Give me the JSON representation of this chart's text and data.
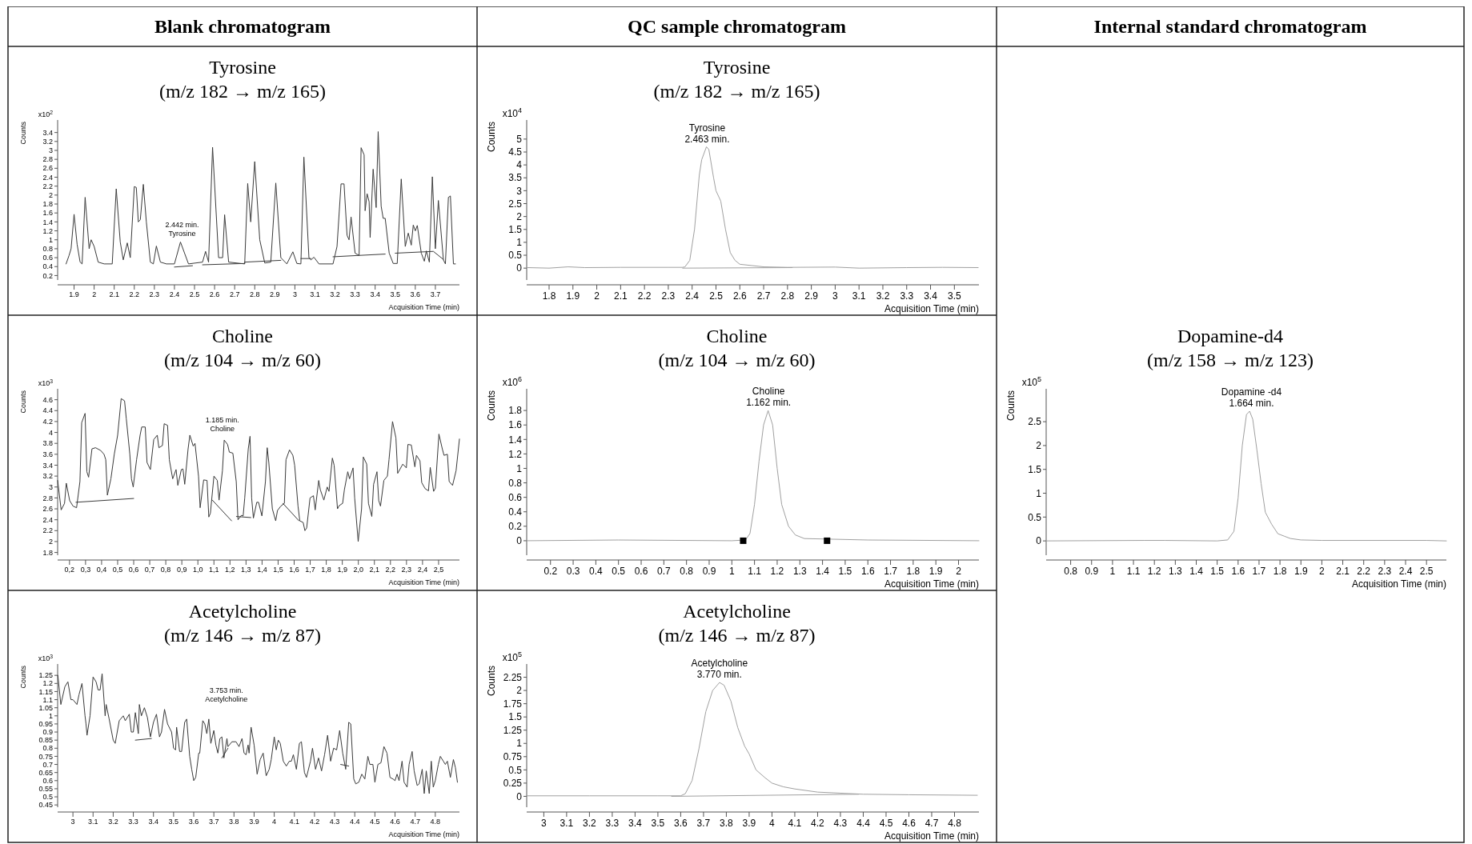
{
  "chart_data": [
    {
      "type": "line",
      "title": "Tyrosine\n(m/z 182 → m/z 165)",
      "xlabel": "Acquisition Time (min)",
      "ylabel": "Counts",
      "xlim": [
        1.818,
        3.82
      ],
      "ylim": [
        0.1,
        3.68
      ],
      "xticks": [
        1.9,
        2,
        2.1,
        2.2,
        2.3,
        2.4,
        2.5,
        2.6,
        2.7,
        2.8,
        2.9,
        3,
        3.1,
        3.2,
        3.3,
        3.4,
        3.5,
        3.6,
        3.7
      ],
      "yticks": [
        0.2,
        0.4,
        0.6,
        0.8,
        1,
        1.2,
        1.4,
        1.6,
        1.8,
        2,
        2.2,
        2.4,
        2.6,
        2.8,
        3,
        3.2,
        3.4
      ],
      "annotations": [
        "Blank chromatogram",
        "x10$^{2}$",
        "2.442 min.\nTyrosine"
      ],
      "series": [
        {
          "color": "#3a3a3a",
          "x": [
            1.86,
            1.875,
            1.885,
            1.9,
            1.915,
            1.93,
            1.94,
            1.955,
            1.975,
            1.985,
            2.0,
            2.02,
            2.05,
            2.09,
            2.11,
            2.13,
            2.145,
            2.165,
            2.18,
            2.2,
            2.21,
            2.22,
            2.23,
            2.245,
            2.26,
            2.28,
            2.295,
            2.31,
            2.33,
            2.36,
            2.4,
            2.43,
            2.47,
            2.54,
            2.555,
            2.57,
            2.59,
            2.62,
            2.64,
            2.65,
            2.67,
            2.75,
            2.765,
            2.78,
            2.8,
            2.825,
            2.85,
            2.88,
            2.905,
            2.93,
            2.96,
            2.99,
            3.01,
            3.03,
            3.045,
            3.07,
            3.08,
            3.095,
            3.12,
            3.19,
            3.21,
            3.23,
            3.245,
            3.26,
            3.27,
            3.28,
            3.3,
            3.32,
            3.33,
            3.345,
            3.35,
            3.36,
            3.37,
            3.375,
            3.39,
            3.405,
            3.415,
            3.43,
            3.44,
            3.45,
            3.47,
            3.49,
            3.51,
            3.53,
            3.55,
            3.565,
            3.58,
            3.59,
            3.6,
            3.61,
            3.63,
            3.645,
            3.655,
            3.67,
            3.685,
            3.7,
            3.715,
            3.74,
            3.75,
            3.765,
            3.775,
            3.79,
            3.8
          ],
          "values": [
            0.46,
            0.65,
            0.8,
            1.57,
            0.9,
            0.5,
            0.46,
            1.95,
            0.8,
            1.0,
            0.85,
            0.5,
            0.46,
            0.46,
            2.14,
            0.95,
            0.55,
            0.93,
            0.6,
            2.19,
            2.17,
            1.4,
            1.45,
            2.24,
            1.4,
            0.5,
            0.46,
            0.86,
            0.5,
            0.46,
            0.46,
            0.95,
            0.46,
            0.5,
            0.74,
            0.5,
            3.07,
            0.6,
            0.6,
            1.56,
            0.5,
            0.46,
            2.26,
            1.4,
            2.75,
            1.0,
            0.48,
            0.5,
            2.27,
            0.6,
            0.46,
            0.73,
            0.47,
            0.46,
            2.85,
            0.6,
            0.55,
            0.61,
            0.46,
            0.46,
            0.85,
            2.25,
            2.25,
            1.1,
            1.0,
            1.51,
            0.7,
            0.65,
            3.06,
            2.9,
            1.65,
            2.03,
            1.85,
            1.05,
            2.58,
            1.72,
            3.42,
            1.75,
            1.48,
            1.48,
            0.7,
            0.47,
            0.47,
            2.36,
            0.85,
            1.15,
            0.88,
            1.33,
            1.2,
            1.32,
            0.7,
            0.52,
            0.75,
            0.5,
            2.41,
            0.8,
            1.88,
            0.55,
            0.46,
            1.95,
            1.98,
            0.46,
            0.46
          ]
        },
        {
          "color": "#3a3a3a",
          "x": [
            2.4,
            2.49
          ],
          "values": [
            0.39,
            0.42
          ]
        },
        {
          "color": "#3a3a3a",
          "x": [
            2.54,
            2.75,
            2.75,
            2.93
          ],
          "values": [
            0.44,
            0.47,
            0.5,
            0.54
          ]
        },
        {
          "color": "#3a3a3a",
          "x": [
            3.03,
            3.08
          ],
          "values": [
            0.58,
            0.58
          ]
        },
        {
          "color": "#3a3a3a",
          "x": [
            3.19,
            3.45
          ],
          "values": [
            0.62,
            0.68
          ]
        },
        {
          "color": "#3a3a3a",
          "x": [
            3.5,
            3.69,
            3.74
          ],
          "values": [
            0.7,
            0.74,
            0.56
          ]
        }
      ]
    },
    {
      "type": "line",
      "title": "Tyrosine\n(m/z 182 → m/z 165)",
      "xlabel": "Acquisition Time (min)",
      "ylabel": "Counts",
      "xlim": [
        1.706,
        3.603
      ],
      "ylim": [
        -0.46,
        5.74
      ],
      "xticks": [
        1.8,
        1.9,
        2,
        2.1,
        2.2,
        2.3,
        2.4,
        2.5,
        2.6,
        2.7,
        2.8,
        2.9,
        3,
        3.1,
        3.2,
        3.3,
        3.4,
        3.5
      ],
      "yticks": [
        0,
        0.5,
        1,
        1.5,
        2,
        2.5,
        3,
        3.5,
        4,
        4.5,
        5
      ],
      "annotations": [
        "QC sample chromatogram",
        "x10$^{4}$",
        {
          "text": "Tyrosine\n2.463 min.",
          "x": 2.463,
          "y": 4.75
        }
      ],
      "series": [
        {
          "color": "#a0a0a0",
          "x": [
            1.71,
            1.8,
            1.88,
            1.95,
            2.1,
            2.3,
            2.36,
            2.37,
            2.39,
            2.41,
            2.43,
            2.44,
            2.46,
            2.47,
            2.49,
            2.5,
            2.52,
            2.54,
            2.56,
            2.58,
            2.6,
            2.65,
            2.7,
            2.8,
            3.0,
            3.1,
            3.3,
            3.45,
            3.6
          ],
          "values": [
            0.02,
            0,
            0.05,
            0.02,
            0.03,
            0.03,
            0.03,
            0.05,
            0.3,
            1.5,
            3.6,
            4.2,
            4.7,
            4.6,
            3.5,
            3.0,
            2.6,
            1.5,
            0.6,
            0.3,
            0.15,
            0.1,
            0.05,
            0.03,
            0.04,
            0,
            0.02,
            0.03,
            0.02
          ]
        },
        {
          "color": "#a0a0a0",
          "x": [
            2.36,
            2.82
          ],
          "values": [
            0,
            0.02
          ]
        }
      ]
    },
    {
      "type": "line",
      "title": "Choline\n(m/z 104 → m/z 60)",
      "xlabel": "Acquisition Time (min)",
      "ylabel": "Counts",
      "xlim": [
        0.126,
        2.63
      ],
      "ylim": [
        1.75,
        4.8
      ],
      "xticks": [
        {
          "value": 0.2,
          "label": "0,2"
        },
        {
          "value": 0.3,
          "label": "0,3"
        },
        {
          "value": 0.4,
          "label": "0,4"
        },
        {
          "value": 0.5,
          "label": "0,5"
        },
        {
          "value": 0.6,
          "label": "0,6"
        },
        {
          "value": 0.7,
          "label": "0,7"
        },
        {
          "value": 0.8,
          "label": "0,8"
        },
        {
          "value": 0.9,
          "label": "0,9"
        },
        {
          "value": 1,
          "label": "1,0"
        },
        {
          "value": 1.1,
          "label": "1,1"
        },
        {
          "value": 1.2,
          "label": "1,2"
        },
        {
          "value": 1.3,
          "label": "1,3"
        },
        {
          "value": 1.4,
          "label": "1,4"
        },
        {
          "value": 1.5,
          "label": "1,5"
        },
        {
          "value": 1.6,
          "label": "1,6"
        },
        {
          "value": 1.7,
          "label": "1,7"
        },
        {
          "value": 1.8,
          "label": "1,8"
        },
        {
          "value": 1.9,
          "label": "1,9"
        },
        {
          "value": 2,
          "label": "2,0"
        },
        {
          "value": 2.1,
          "label": "2,1"
        },
        {
          "value": 2.2,
          "label": "2,2"
        },
        {
          "value": 2.3,
          "label": "2,3"
        },
        {
          "value": 2.4,
          "label": "2,4"
        },
        {
          "value": 2.5,
          "label": "2,5"
        }
      ],
      "yticks": [
        1.8,
        2,
        2.2,
        2.4,
        2.6,
        2.8,
        3,
        3.2,
        3.4,
        3.6,
        3.8,
        4,
        4.2,
        4.4,
        4.6
      ],
      "annotations": [
        "x10$^{3}$",
        "1.185 min.\nCholine"
      ],
      "series": [
        {
          "color": "#3a3a3a",
          "x": [
            0.126,
            0.148,
            0.169,
            0.18,
            0.201,
            0.222,
            0.244,
            0.265,
            0.276,
            0.297,
            0.308,
            0.319,
            0.34,
            0.362,
            0.394,
            0.415,
            0.426,
            0.436,
            0.458,
            0.479,
            0.5,
            0.522,
            0.543,
            0.554,
            0.576,
            0.586,
            0.597,
            0.618,
            0.64,
            0.65,
            0.672,
            0.683,
            0.704,
            0.725,
            0.747,
            0.757,
            0.779,
            0.79,
            0.811,
            0.822,
            0.843,
            0.864,
            0.875,
            0.897,
            0.907,
            0.918,
            0.939,
            0.95,
            0.971,
            0.982,
            1.004,
            1.014,
            1.036,
            1.057,
            1.068,
            1.078,
            1.1,
            1.121,
            1.132,
            1.153,
            1.164,
            1.185,
            1.196,
            1.218,
            1.239,
            1.25,
            1.271,
            1.282,
            1.292,
            1.314,
            1.325,
            1.335,
            1.346,
            1.367,
            1.378,
            1.399,
            1.421,
            1.432,
            1.442,
            1.464,
            1.485,
            1.496,
            1.517,
            1.539,
            1.549,
            1.571,
            1.592,
            1.603,
            1.624,
            1.635,
            1.656,
            1.667,
            1.678,
            1.699,
            1.72,
            1.731,
            1.753,
            1.763,
            1.785,
            1.806,
            1.817,
            1.838,
            1.849,
            1.87,
            1.881,
            1.902,
            1.913,
            1.934,
            1.945,
            1.967,
            1.977,
            1.999,
            2.02,
            2.031,
            2.052,
            2.063,
            2.084,
            2.095,
            2.116,
            2.127,
            2.138,
            2.159,
            2.181,
            2.191,
            2.213,
            2.234,
            2.245,
            2.277,
            2.299,
            2.309,
            2.33,
            2.352,
            2.362,
            2.384,
            2.395,
            2.416,
            2.437,
            2.448,
            2.469,
            2.48,
            2.502,
            2.523,
            2.534,
            2.555,
            2.566,
            2.587,
            2.609,
            2.63
          ],
          "values": [
            3.12,
            2.58,
            2.7,
            3.07,
            2.75,
            2.65,
            2.62,
            3.1,
            4.18,
            4.35,
            3.28,
            3.18,
            3.7,
            3.72,
            3.67,
            3.6,
            3.5,
            2.85,
            3.15,
            3.6,
            3.95,
            4.62,
            4.58,
            4.25,
            3.6,
            3.15,
            3.0,
            3.5,
            3.95,
            4.1,
            4.1,
            3.45,
            3.32,
            3.87,
            3.95,
            3.72,
            3.76,
            4.16,
            4.13,
            3.5,
            3.15,
            3.32,
            3.03,
            3.32,
            3.33,
            3.05,
            3.7,
            3.95,
            3.75,
            3.8,
            3.2,
            2.62,
            3.13,
            3.12,
            2.45,
            2.52,
            3.2,
            3.12,
            2.76,
            3.3,
            3.86,
            3.78,
            3.64,
            3.62,
            3.1,
            2.4,
            2.48,
            2.47,
            2.8,
            3.7,
            3.93,
            2.8,
            2.43,
            2.72,
            2.72,
            2.47,
            3.1,
            3.72,
            3.45,
            2.6,
            2.38,
            2.57,
            2.65,
            2.7,
            3.5,
            3.68,
            3.58,
            3.4,
            2.65,
            2.38,
            2.35,
            2.2,
            2.25,
            2.8,
            2.84,
            2.58,
            3.12,
            2.95,
            2.76,
            3.0,
            2.92,
            3.53,
            3.4,
            2.6,
            2.66,
            2.7,
            2.95,
            3.28,
            3.15,
            3.35,
            2.8,
            2.0,
            2.6,
            3.55,
            3.42,
            2.7,
            2.46,
            3.05,
            3.28,
            2.75,
            2.65,
            3.12,
            3.2,
            3.5,
            4.2,
            3.9,
            3.25,
            3.42,
            3.35,
            3.78,
            3.77,
            3.37,
            3.58,
            3.48,
            3.08,
            2.97,
            2.93,
            3.36,
            2.92,
            2.98,
            3.97,
            3.7,
            3.58,
            3.6,
            3.1,
            3.03,
            3.3,
            3.88
          ]
        },
        {
          "color": "#3a3a3a",
          "x": [
            0.24,
            0.6
          ],
          "values": [
            2.72,
            2.79
          ]
        },
        {
          "color": "#3a3a3a",
          "x": [
            1.09,
            1.21
          ],
          "values": [
            2.76,
            2.38
          ]
        },
        {
          "color": "#3a3a3a",
          "x": [
            1.24,
            1.33
          ],
          "values": [
            2.46,
            2.44
          ]
        },
        {
          "color": "#3a3a3a",
          "x": [
            1.53,
            1.63
          ],
          "values": [
            2.7,
            2.38
          ]
        }
      ]
    },
    {
      "type": "line",
      "title": "Choline\n(m/z 104 → m/z 60)",
      "xlabel": "Acquisition Time (min)",
      "ylabel": "Counts",
      "xlim": [
        0.095,
        2.09
      ],
      "ylim": [
        -0.2,
        2.1
      ],
      "xticks": [
        0.2,
        0.3,
        0.4,
        0.5,
        0.6,
        0.7,
        0.8,
        0.9,
        1,
        1.1,
        1.2,
        1.3,
        1.4,
        1.5,
        1.6,
        1.7,
        1.8,
        1.9,
        2
      ],
      "yticks": [
        0,
        0.2,
        0.4,
        0.6,
        0.8,
        1,
        1.2,
        1.4,
        1.6,
        1.8
      ],
      "annotations": [
        "x10$^{6}$",
        {
          "text": "Choline\n1.162 min.",
          "x": 1.162,
          "y": 1.82
        }
      ],
      "series": [
        {
          "color": "#a0a0a0",
          "x": [
            0.095,
            0.5,
            1.0,
            1.06,
            1.08,
            1.1,
            1.12,
            1.14,
            1.16,
            1.18,
            1.2,
            1.22,
            1.25,
            1.28,
            1.32,
            1.6,
            2.09
          ],
          "values": [
            0,
            0.01,
            0,
            0.01,
            0.1,
            0.5,
            1.1,
            1.6,
            1.8,
            1.6,
            1.0,
            0.5,
            0.2,
            0.08,
            0.03,
            0.01,
            0
          ]
        },
        {
          "type": "scatter",
          "marker": "square",
          "color": "#000000",
          "x": [
            1.05,
            1.42
          ],
          "values": [
            0,
            0
          ]
        }
      ]
    },
    {
      "type": "line",
      "title": "Dopamine-d4\n(m/z 158 → m/z 123)",
      "xlabel": "Acquisition Time (min)",
      "ylabel": "Counts",
      "xlim": [
        0.683,
        2.595
      ],
      "ylim": [
        -0.3,
        3.19
      ],
      "xticks": [
        0.8,
        0.9,
        1,
        1.1,
        1.2,
        1.3,
        1.4,
        1.5,
        1.6,
        1.7,
        1.8,
        1.9,
        2,
        2.1,
        2.2,
        2.3,
        2.4,
        2.5
      ],
      "yticks": [
        0,
        0.5,
        1,
        1.5,
        2,
        2.5
      ],
      "annotations": [
        "Internal standard chromatogram",
        "x10$^{5}$",
        {
          "text": "Dopamine -d4\n1.664 min.",
          "x": 1.664,
          "y": 2.75
        }
      ],
      "series": [
        {
          "color": "#a0a0a0",
          "x": [
            0.683,
            1.15,
            1.25,
            1.5,
            1.55,
            1.58,
            1.6,
            1.62,
            1.64,
            1.655,
            1.67,
            1.69,
            1.71,
            1.73,
            1.76,
            1.79,
            1.82,
            1.85,
            1.9,
            2.0,
            2.5,
            2.595
          ],
          "values": [
            0,
            0.01,
            0.01,
            0,
            0.02,
            0.2,
            0.9,
            2.0,
            2.65,
            2.72,
            2.55,
            1.9,
            1.2,
            0.6,
            0.35,
            0.15,
            0.1,
            0.05,
            0.02,
            0.01,
            0.01,
            0
          ]
        }
      ]
    },
    {
      "type": "line",
      "title": "Acetylcholine\n(m/z 146 → m/z 87)",
      "xlabel": "Acquisition Time (min)",
      "ylabel": "Counts",
      "xlim": [
        2.924,
        4.92
      ],
      "ylim": [
        0.436,
        1.32
      ],
      "xticks": [
        3,
        3.1,
        3.2,
        3.3,
        3.4,
        3.5,
        3.6,
        3.7,
        3.8,
        3.9,
        4,
        4.1,
        4.2,
        4.3,
        4.4,
        4.5,
        4.6,
        4.7,
        4.8
      ],
      "yticks": [
        0.45,
        0.5,
        0.55,
        0.6,
        0.65,
        0.7,
        0.75,
        0.8,
        0.85,
        0.9,
        0.95,
        1,
        1.05,
        1.1,
        1.15,
        1.2,
        1.25
      ],
      "annotations": [
        "x10$^{3}$",
        "3.753 min.\nAcetylcholine"
      ],
      "series": [
        {
          "color": "#3a3a3a",
          "x": [
            2.925,
            2.94,
            2.96,
            2.975,
            2.99,
            3.0,
            3.02,
            3.03,
            3.045,
            3.06,
            3.065,
            3.07,
            3.085,
            3.1,
            3.115,
            3.125,
            3.135,
            3.145,
            3.16,
            3.165,
            3.18,
            3.2,
            3.21,
            3.23,
            3.25,
            3.26,
            3.28,
            3.29,
            3.3,
            3.31,
            3.325,
            3.33,
            3.34,
            3.355,
            3.37,
            3.385,
            3.4,
            3.415,
            3.43,
            3.44,
            3.455,
            3.47,
            3.49,
            3.5,
            3.51,
            3.515,
            3.53,
            3.54,
            3.555,
            3.565,
            3.58,
            3.59,
            3.6,
            3.61,
            3.625,
            3.63,
            3.645,
            3.655,
            3.665,
            3.675,
            3.685,
            3.7,
            3.71,
            3.72,
            3.73,
            3.74,
            3.75,
            3.765,
            3.77,
            3.79,
            3.81,
            3.825,
            3.84,
            3.85,
            3.86,
            3.87,
            3.875,
            3.885,
            3.9,
            3.915,
            3.93,
            3.945,
            3.96,
            3.975,
            3.985,
            4.0,
            4.01,
            4.02,
            4.03,
            4.045,
            4.06,
            4.075,
            4.085,
            4.095,
            4.11,
            4.125,
            4.135,
            4.15,
            4.16,
            4.18,
            4.19,
            4.205,
            4.22,
            4.235,
            4.25,
            4.265,
            4.28,
            4.295,
            4.31,
            4.325,
            4.34,
            4.355,
            4.37,
            4.38,
            4.395,
            4.405,
            4.42,
            4.435,
            4.45,
            4.465,
            4.475,
            4.49,
            4.5,
            4.515,
            4.53,
            4.545,
            4.56,
            4.575,
            4.59,
            4.6,
            4.61,
            4.62,
            4.635,
            4.645,
            4.66,
            4.67,
            4.685,
            4.695,
            4.71,
            4.72,
            4.735,
            4.745,
            4.755,
            4.77,
            4.78,
            4.79,
            4.8,
            4.815,
            4.825,
            4.84,
            4.85,
            4.86,
            4.875,
            4.89,
            4.9,
            4.91
          ],
          "values": [
            1.25,
            1.07,
            1.18,
            1.21,
            1.1,
            1.1,
            1.07,
            1.13,
            1.2,
            1.0,
            0.95,
            0.88,
            1.0,
            1.24,
            1.21,
            1.16,
            1.16,
            1.26,
            1.0,
            1.07,
            0.98,
            0.85,
            0.83,
            0.97,
            1.0,
            0.97,
            1.01,
            0.9,
            0.9,
            1.02,
            0.89,
            1.07,
            1.0,
            1.05,
            0.99,
            0.87,
            0.96,
            1.01,
            0.87,
            0.9,
            1.04,
            0.95,
            0.9,
            0.8,
            0.79,
            0.93,
            0.78,
            0.78,
            0.96,
            0.98,
            0.75,
            0.67,
            0.6,
            0.62,
            0.77,
            0.77,
            0.97,
            0.95,
            0.89,
            0.98,
            0.83,
            0.91,
            0.82,
            0.77,
            0.86,
            0.87,
            0.74,
            0.86,
            0.81,
            0.84,
            0.84,
            0.81,
            0.86,
            0.77,
            0.76,
            0.82,
            0.77,
            0.93,
            0.82,
            0.64,
            0.73,
            0.77,
            0.63,
            0.67,
            0.73,
            0.87,
            0.79,
            0.85,
            0.83,
            0.72,
            0.69,
            0.72,
            0.72,
            0.76,
            0.67,
            0.83,
            0.84,
            0.65,
            0.62,
            0.72,
            0.8,
            0.67,
            0.74,
            0.66,
            0.76,
            0.88,
            0.72,
            0.8,
            0.79,
            0.91,
            0.77,
            0.67,
            0.96,
            0.95,
            0.61,
            0.58,
            0.59,
            0.64,
            0.61,
            0.75,
            0.7,
            0.7,
            0.59,
            0.7,
            0.71,
            0.81,
            0.77,
            0.62,
            0.61,
            0.6,
            0.64,
            0.6,
            0.72,
            0.59,
            0.56,
            0.7,
            0.78,
            0.66,
            0.57,
            0.58,
            0.67,
            0.52,
            0.66,
            0.52,
            0.72,
            0.56,
            0.6,
            0.7,
            0.75,
            0.72,
            0.7,
            0.72,
            0.62,
            0.73,
            0.68,
            0.59
          ]
        },
        {
          "color": "#3a3a3a",
          "x": [
            3.31,
            3.39
          ],
          "values": [
            0.85,
            0.86
          ]
        },
        {
          "color": "#3a3a3a",
          "x": [
            3.74,
            3.77
          ],
          "values": [
            0.74,
            0.8
          ]
        },
        {
          "color": "#3a3a3a",
          "x": [
            4.33,
            4.37
          ],
          "values": [
            0.7,
            0.69
          ]
        }
      ]
    },
    {
      "type": "line",
      "title": "Acetylcholine\n(m/z 146 → m/z 87)",
      "xlabel": "Acquisition Time (min)",
      "ylabel": "Counts",
      "xlim": [
        2.925,
        4.907
      ],
      "ylim": [
        -0.205,
        2.5
      ],
      "xticks": [
        3,
        3.1,
        3.2,
        3.3,
        3.4,
        3.5,
        3.6,
        3.7,
        3.8,
        3.9,
        4,
        4.1,
        4.2,
        4.3,
        4.4,
        4.5,
        4.6,
        4.7,
        4.8
      ],
      "yticks": [
        0,
        0.25,
        0.5,
        0.75,
        1,
        1.25,
        1.5,
        1.75,
        2,
        2.25
      ],
      "annotations": [
        "x10$^{5}$",
        {
          "text": "Acetylcholine\n3.770 min.",
          "x": 3.77,
          "y": 2.18
        }
      ],
      "series": [
        {
          "color": "#a0a0a0",
          "x": [
            2.925,
            3.2,
            3.5,
            3.6,
            3.62,
            3.65,
            3.68,
            3.71,
            3.74,
            3.77,
            3.79,
            3.82,
            3.85,
            3.88,
            3.9,
            3.93,
            3.97,
            4.0,
            4.05,
            4.1,
            4.2,
            4.3,
            4.4,
            4.6,
            4.9
          ],
          "values": [
            0.01,
            0.01,
            0.01,
            0.01,
            0.05,
            0.3,
            0.9,
            1.6,
            2.0,
            2.15,
            2.1,
            1.8,
            1.3,
            0.95,
            0.8,
            0.5,
            0.35,
            0.25,
            0.18,
            0.14,
            0.08,
            0.06,
            0.04,
            0.03,
            0.02
          ]
        },
        {
          "color": "#a0a0a0",
          "x": [
            3.56,
            4.38
          ],
          "values": [
            0,
            0.04
          ]
        }
      ]
    }
  ]
}
